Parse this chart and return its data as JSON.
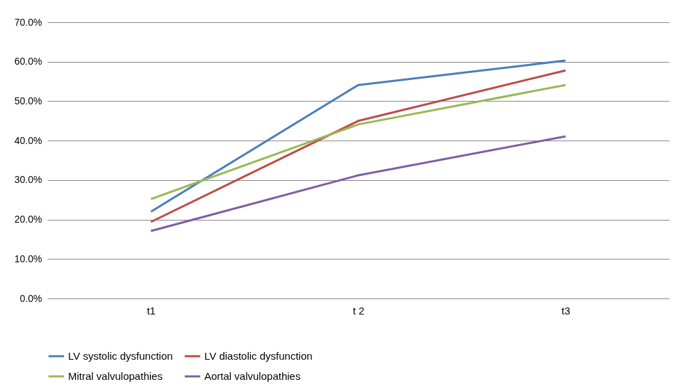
{
  "chart_data": {
    "type": "line",
    "categories": [
      "t1",
      "t 2",
      "t3"
    ],
    "series": [
      {
        "name": "LV systolic dysfunction",
        "color": "#4a7ebb",
        "values": [
          22.0,
          54.1,
          60.3
        ]
      },
      {
        "name": "LV diastolic dysfunction",
        "color": "#be4b48",
        "values": [
          19.4,
          45.0,
          57.8
        ]
      },
      {
        "name": "Mitral valvulopathies",
        "color": "#98b954",
        "values": [
          25.2,
          44.1,
          54.1
        ]
      },
      {
        "name": "Aortal valvulopathies",
        "color": "#7d60a0",
        "values": [
          17.1,
          31.2,
          41.1
        ]
      }
    ],
    "ylim": [
      0,
      70
    ],
    "yticks": [
      {
        "value": 0,
        "label": "0.0%"
      },
      {
        "value": 10,
        "label": "10.0%"
      },
      {
        "value": 20,
        "label": "20.0%"
      },
      {
        "value": 30,
        "label": "30.0%"
      },
      {
        "value": 40,
        "label": "40.0%"
      },
      {
        "value": 50,
        "label": "50.0%"
      },
      {
        "value": 60,
        "label": "60.0%"
      },
      {
        "value": 70,
        "label": "70.0%"
      }
    ],
    "grid": "y",
    "legend": "bottom",
    "marker": "none",
    "line_style": "solid"
  }
}
